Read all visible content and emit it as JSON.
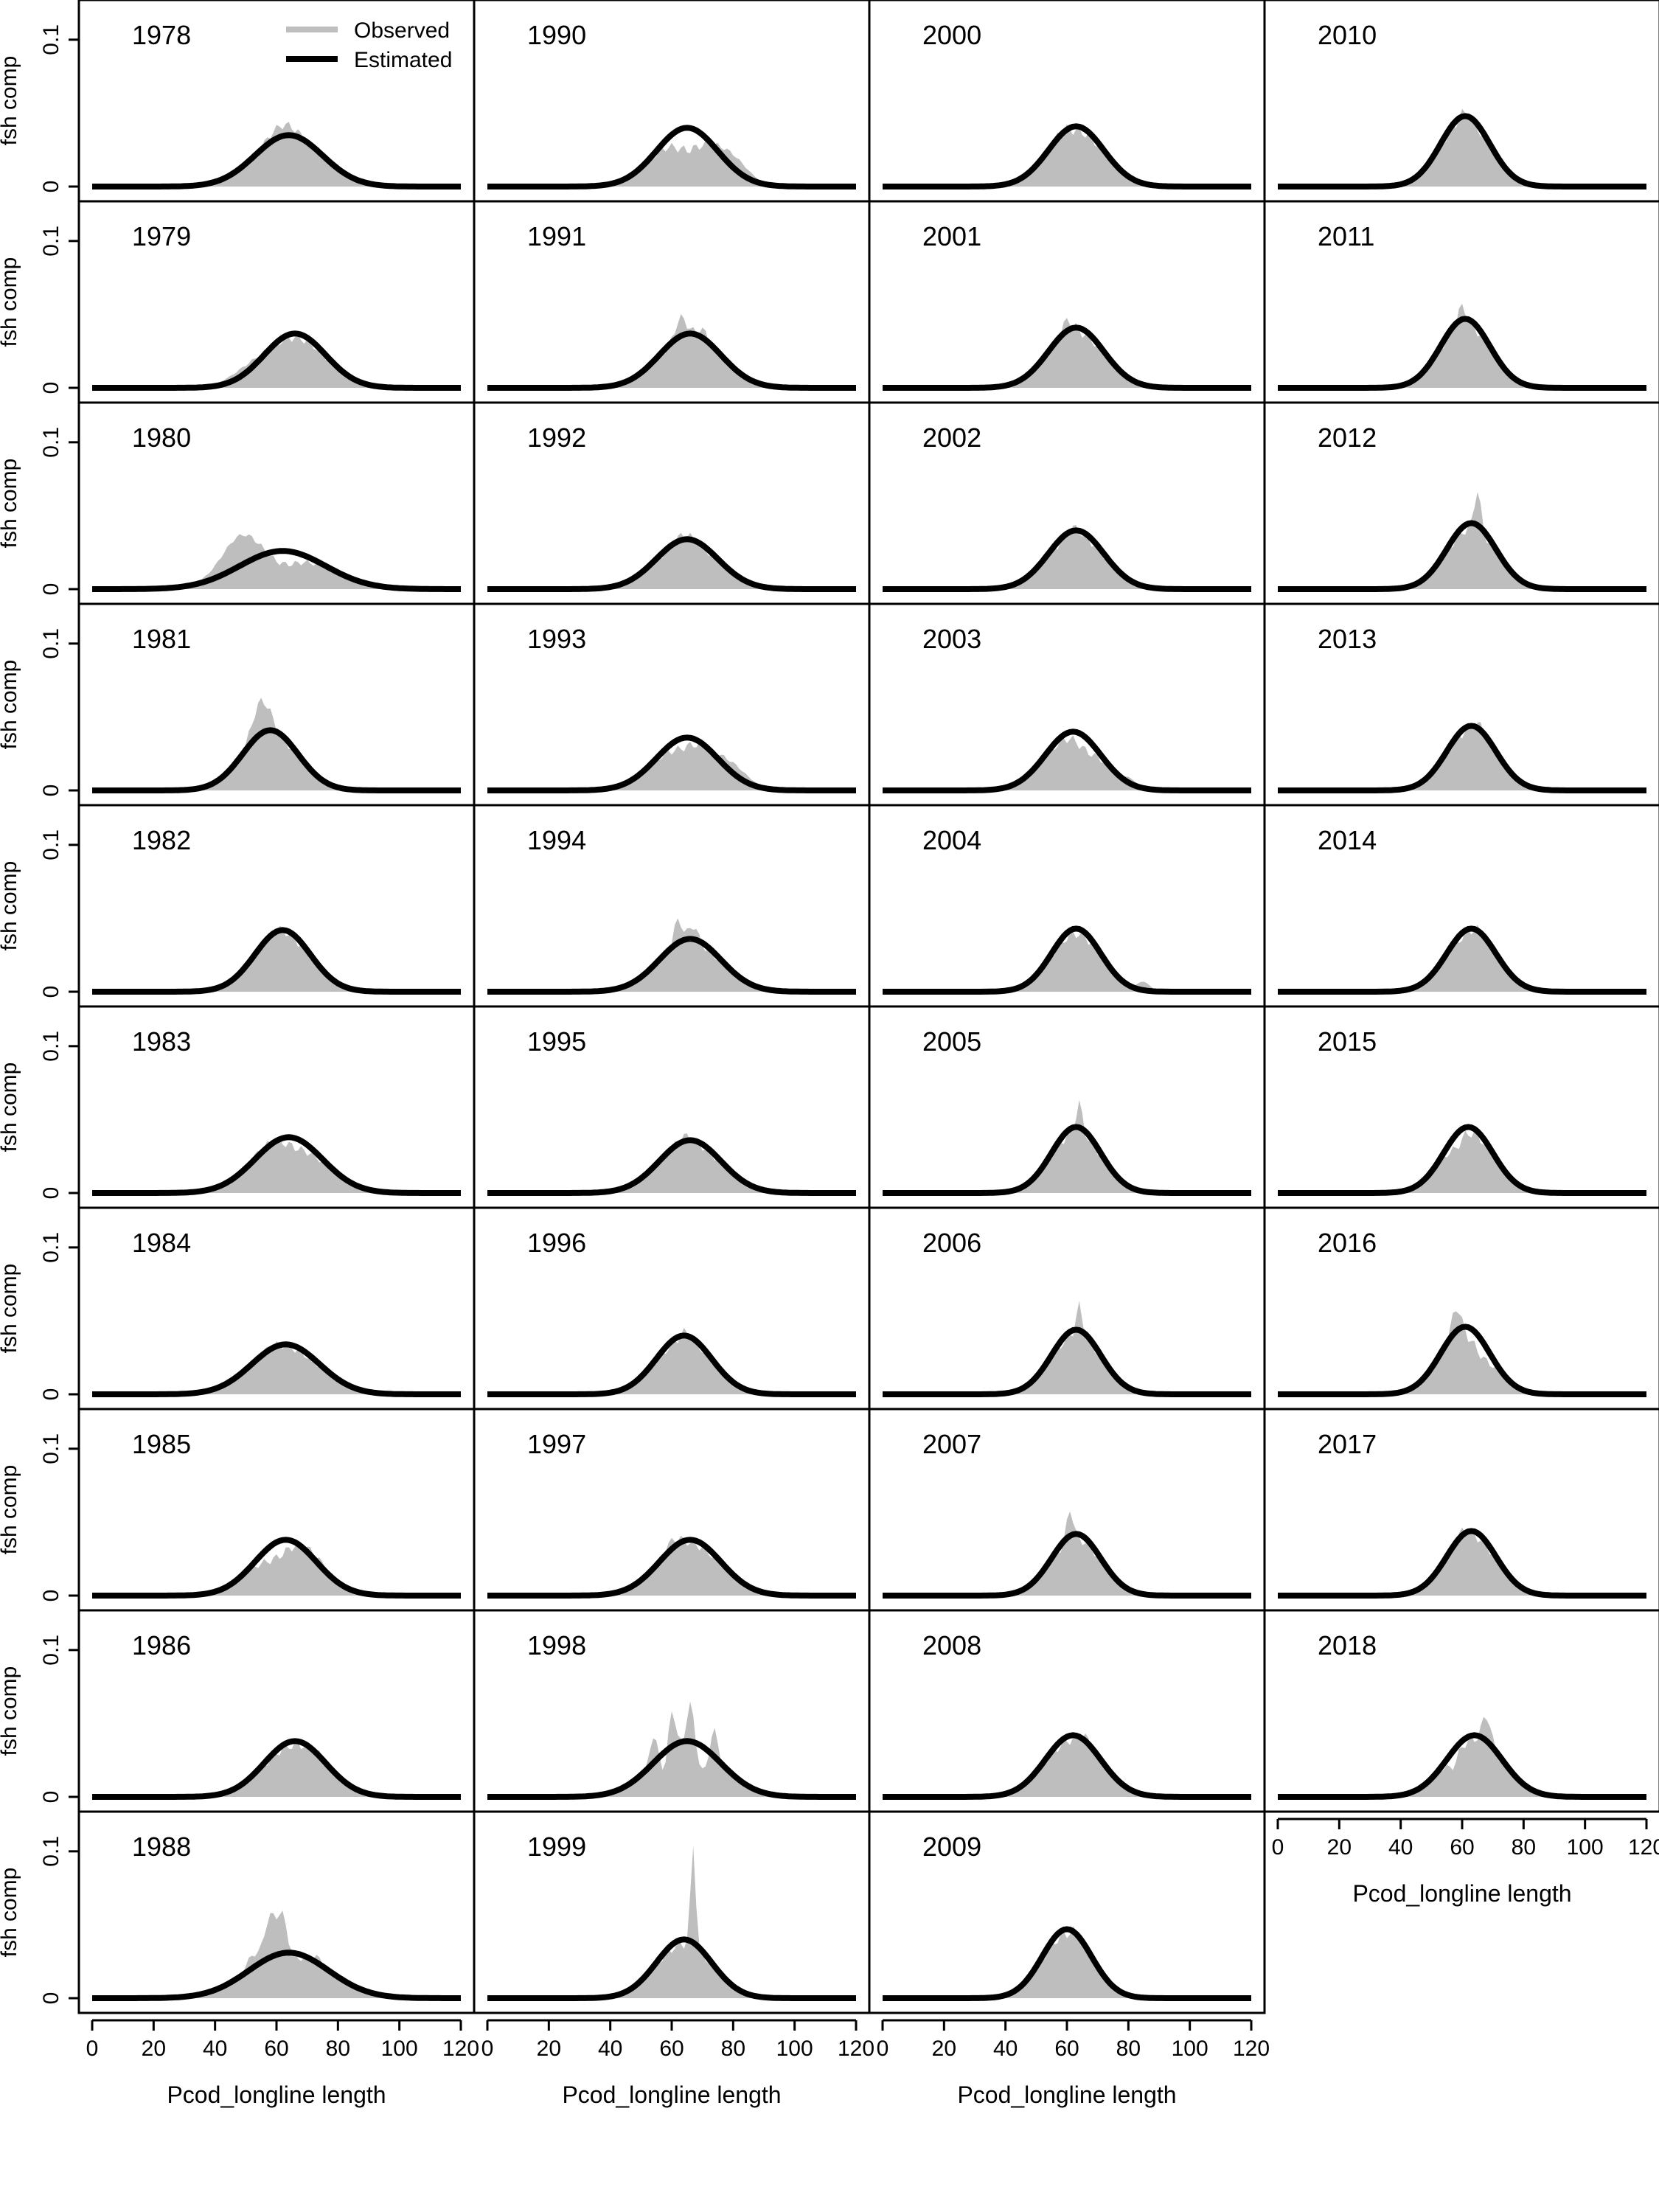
{
  "chart_data": {
    "type": "area",
    "title": "",
    "ylabel": "fsh comp",
    "xlabel": "Pcod_longline length",
    "xlim": [
      0,
      120
    ],
    "ylim": [
      0,
      0.12
    ],
    "xticks": [
      "0",
      "20",
      "40",
      "60",
      "80",
      "100",
      "120"
    ],
    "yticks": [
      "0",
      "0.1"
    ],
    "legend": {
      "position": "top",
      "entries": [
        {
          "name": "Observed",
          "color": "#bebebe"
        },
        {
          "name": "Estimated",
          "color": "#000000"
        }
      ]
    },
    "colors": {
      "observed": "#bebebe",
      "estimated": "#000000"
    },
    "x_axis_titles": [
      "Pcod_longline length",
      "Pcod_longline length",
      "Pcod_longline length",
      "Pcod_longline length"
    ],
    "series": [
      {
        "name": "1978",
        "est_mean": 64,
        "est_sd": 11,
        "est_peak": 0.035,
        "obs_features": [
          [
            62,
            5,
            0.01
          ]
        ]
      },
      {
        "name": "1979",
        "est_mean": 66,
        "est_sd": 10,
        "est_peak": 0.037,
        "obs_features": [
          [
            50,
            6,
            0.006
          ]
        ]
      },
      {
        "name": "1980",
        "est_mean": 62,
        "est_sd": 14,
        "est_peak": 0.026,
        "obs_features": [
          [
            48,
            6,
            0.022
          ],
          [
            62,
            5,
            -0.008
          ]
        ]
      },
      {
        "name": "1981",
        "est_mean": 58,
        "est_sd": 9,
        "est_peak": 0.041,
        "obs_features": [
          [
            55,
            3,
            0.025
          ]
        ]
      },
      {
        "name": "1982",
        "est_mean": 62,
        "est_sd": 9,
        "est_peak": 0.042,
        "obs_features": [
          [
            60,
            3,
            0.004
          ]
        ]
      },
      {
        "name": "1983",
        "est_mean": 64,
        "est_sd": 11,
        "est_peak": 0.038,
        "obs_features": [
          [
            56,
            5,
            0.005
          ],
          [
            66,
            4,
            -0.004
          ]
        ]
      },
      {
        "name": "1984",
        "est_mean": 63,
        "est_sd": 11,
        "est_peak": 0.034,
        "obs_features": [
          [
            58,
            4,
            0.004
          ]
        ]
      },
      {
        "name": "1985",
        "est_mean": 63,
        "est_sd": 10,
        "est_peak": 0.038,
        "obs_features": [
          [
            72,
            5,
            0.006
          ],
          [
            60,
            4,
            -0.008
          ]
        ]
      },
      {
        "name": "1986",
        "est_mean": 66,
        "est_sd": 10,
        "est_peak": 0.038,
        "obs_features": [
          [
            75,
            4,
            0.004
          ]
        ]
      },
      {
        "name": "1988",
        "est_mean": 64,
        "est_sd": 13,
        "est_peak": 0.031,
        "obs_features": [
          [
            58,
            2,
            0.03
          ],
          [
            62,
            1.5,
            0.025
          ],
          [
            52,
            2,
            0.01
          ],
          [
            74,
            2,
            0.006
          ]
        ]
      },
      {
        "name": "1990",
        "est_mean": 65,
        "est_sd": 10,
        "est_peak": 0.04,
        "obs_features": [
          [
            80,
            5,
            0.01
          ],
          [
            65,
            4,
            -0.012
          ]
        ]
      },
      {
        "name": "1991",
        "est_mean": 66,
        "est_sd": 10,
        "est_peak": 0.037,
        "obs_features": [
          [
            63,
            2,
            0.015
          ],
          [
            70,
            2,
            0.008
          ]
        ]
      },
      {
        "name": "1992",
        "est_mean": 65,
        "est_sd": 10,
        "est_peak": 0.034,
        "obs_features": [
          [
            64,
            3,
            0.006
          ]
        ]
      },
      {
        "name": "1993",
        "est_mean": 65,
        "est_sd": 10,
        "est_peak": 0.036,
        "obs_features": [
          [
            80,
            5,
            0.008
          ],
          [
            63,
            3,
            -0.004
          ]
        ]
      },
      {
        "name": "1994",
        "est_mean": 66,
        "est_sd": 10,
        "est_peak": 0.036,
        "obs_features": [
          [
            62,
            1.5,
            0.018
          ],
          [
            67,
            1.5,
            0.012
          ]
        ]
      },
      {
        "name": "1995",
        "est_mean": 66,
        "est_sd": 10,
        "est_peak": 0.036,
        "obs_features": [
          [
            64,
            3,
            0.006
          ]
        ]
      },
      {
        "name": "1996",
        "est_mean": 64,
        "est_sd": 9,
        "est_peak": 0.04,
        "obs_features": [
          [
            65,
            2,
            0.006
          ]
        ]
      },
      {
        "name": "1997",
        "est_mean": 66,
        "est_sd": 10,
        "est_peak": 0.038,
        "obs_features": [
          [
            60,
            3,
            0.008
          ]
        ]
      },
      {
        "name": "1998",
        "est_mean": 65,
        "est_sd": 11,
        "est_peak": 0.038,
        "obs_features": [
          [
            60,
            1.2,
            0.03
          ],
          [
            66,
            1.2,
            0.028
          ],
          [
            54,
            1.2,
            0.02
          ],
          [
            74,
            1.2,
            0.02
          ],
          [
            70,
            1.2,
            -0.015
          ],
          [
            58,
            1.2,
            -0.012
          ]
        ]
      },
      {
        "name": "1999",
        "est_mean": 64,
        "est_sd": 9,
        "est_peak": 0.04,
        "obs_features": [
          [
            67,
            0.8,
            0.07
          ]
        ]
      },
      {
        "name": "2000",
        "est_mean": 63,
        "est_sd": 9,
        "est_peak": 0.041,
        "obs_features": [
          [
            58,
            2,
            0.006
          ]
        ]
      },
      {
        "name": "2001",
        "est_mean": 63,
        "est_sd": 9,
        "est_peak": 0.041,
        "obs_features": [
          [
            60,
            2,
            0.01
          ]
        ]
      },
      {
        "name": "2002",
        "est_mean": 63,
        "est_sd": 9,
        "est_peak": 0.04,
        "obs_features": [
          [
            62,
            2,
            0.005
          ]
        ]
      },
      {
        "name": "2003",
        "est_mean": 62,
        "est_sd": 9,
        "est_peak": 0.04,
        "obs_features": [
          [
            66,
            3,
            -0.006
          ],
          [
            80,
            3,
            0.004
          ]
        ]
      },
      {
        "name": "2004",
        "est_mean": 63,
        "est_sd": 8,
        "est_peak": 0.043,
        "obs_features": [
          [
            85,
            2,
            0.006
          ]
        ]
      },
      {
        "name": "2005",
        "est_mean": 63,
        "est_sd": 8,
        "est_peak": 0.045,
        "obs_features": [
          [
            64,
            1,
            0.02
          ]
        ]
      },
      {
        "name": "2006",
        "est_mean": 63,
        "est_sd": 8,
        "est_peak": 0.044,
        "obs_features": [
          [
            64,
            1,
            0.02
          ]
        ]
      },
      {
        "name": "2007",
        "est_mean": 63,
        "est_sd": 8,
        "est_peak": 0.042,
        "obs_features": [
          [
            61,
            1,
            0.022
          ]
        ]
      },
      {
        "name": "2008",
        "est_mean": 62,
        "est_sd": 9,
        "est_peak": 0.042,
        "obs_features": [
          [
            66,
            2,
            0.006
          ]
        ]
      },
      {
        "name": "2009",
        "est_mean": 60,
        "est_sd": 8,
        "est_peak": 0.047,
        "obs_features": [
          [
            64,
            2,
            0.006
          ]
        ]
      },
      {
        "name": "2010",
        "est_mean": 61,
        "est_sd": 8,
        "est_peak": 0.048,
        "obs_features": [
          [
            61,
            2,
            0.006
          ]
        ]
      },
      {
        "name": "2011",
        "est_mean": 61,
        "est_sd": 8,
        "est_peak": 0.047,
        "obs_features": [
          [
            60,
            1.5,
            0.012
          ]
        ]
      },
      {
        "name": "2012",
        "est_mean": 63,
        "est_sd": 8,
        "est_peak": 0.045,
        "obs_features": [
          [
            65,
            1,
            0.028
          ]
        ]
      },
      {
        "name": "2013",
        "est_mean": 63,
        "est_sd": 8,
        "est_peak": 0.044,
        "obs_features": [
          [
            66,
            3,
            0.006
          ]
        ]
      },
      {
        "name": "2014",
        "est_mean": 63,
        "est_sd": 8,
        "est_peak": 0.043,
        "obs_features": [
          [
            65,
            2,
            0.004
          ]
        ]
      },
      {
        "name": "2015",
        "est_mean": 62,
        "est_sd": 8,
        "est_peak": 0.045,
        "obs_features": [
          [
            58,
            2,
            -0.006
          ]
        ]
      },
      {
        "name": "2016",
        "est_mean": 61,
        "est_sd": 8,
        "est_peak": 0.046,
        "obs_features": [
          [
            58,
            1.5,
            0.02
          ],
          [
            66,
            3,
            -0.008
          ]
        ]
      },
      {
        "name": "2017",
        "est_mean": 63,
        "est_sd": 8,
        "est_peak": 0.044,
        "obs_features": [
          [
            60,
            2,
            0.006
          ]
        ]
      },
      {
        "name": "2018",
        "est_mean": 64,
        "est_sd": 9,
        "est_peak": 0.042,
        "obs_features": [
          [
            68,
            1.5,
            0.02
          ],
          [
            57,
            1.5,
            -0.008
          ]
        ]
      }
    ]
  }
}
